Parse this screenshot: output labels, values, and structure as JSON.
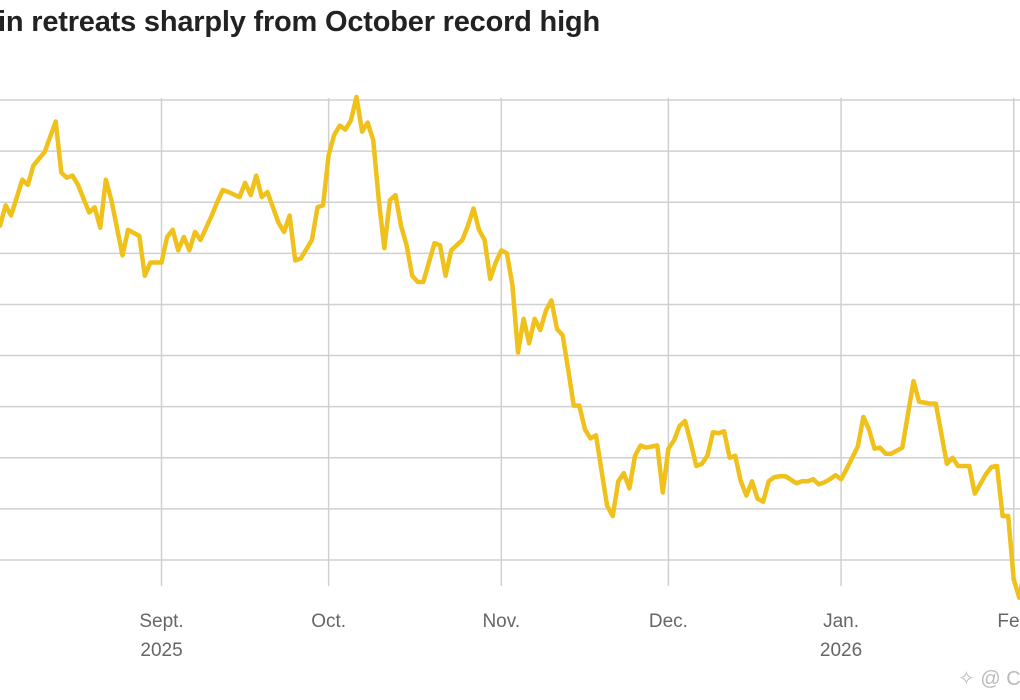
{
  "chart_data": {
    "type": "line",
    "title": "in retreats sharply from October record high",
    "xlabel": "",
    "ylabel": "",
    "line_color": "#efc11a",
    "grid": true,
    "grid_color": "#d0d0d0",
    "ylim": [
      80000,
      125000
    ],
    "y_grid_step": 5000,
    "xlim": [
      "2025-08-03",
      "2026-02-03"
    ],
    "x_ticks": [
      {
        "date": "2025-09-01",
        "label": "Sept.",
        "sublabel": "2025"
      },
      {
        "date": "2025-10-01",
        "label": "Oct.",
        "sublabel": ""
      },
      {
        "date": "2025-11-01",
        "label": "Nov.",
        "sublabel": ""
      },
      {
        "date": "2025-12-01",
        "label": "Dec.",
        "sublabel": ""
      },
      {
        "date": "2026-01-01",
        "label": "Jan.",
        "sublabel": "2026"
      },
      {
        "date": "2026-02-01",
        "label": "Feb",
        "sublabel": ""
      }
    ],
    "points": [
      [
        "2025-08-03",
        112700
      ],
      [
        "2025-08-04",
        114700
      ],
      [
        "2025-08-05",
        113700
      ],
      [
        "2025-08-07",
        117200
      ],
      [
        "2025-08-08",
        116700
      ],
      [
        "2025-08-09",
        118600
      ],
      [
        "2025-08-11",
        119900
      ],
      [
        "2025-08-13",
        122900
      ],
      [
        "2025-08-14",
        117900
      ],
      [
        "2025-08-15",
        117400
      ],
      [
        "2025-08-16",
        117600
      ],
      [
        "2025-08-17",
        116700
      ],
      [
        "2025-08-19",
        114000
      ],
      [
        "2025-08-20",
        114500
      ],
      [
        "2025-08-21",
        112500
      ],
      [
        "2025-08-22",
        117200
      ],
      [
        "2025-08-23",
        115200
      ],
      [
        "2025-08-25",
        109800
      ],
      [
        "2025-08-26",
        112300
      ],
      [
        "2025-08-28",
        111700
      ],
      [
        "2025-08-29",
        107800
      ],
      [
        "2025-08-30",
        109100
      ],
      [
        "2025-09-01",
        109100
      ],
      [
        "2025-09-02",
        111600
      ],
      [
        "2025-09-03",
        112300
      ],
      [
        "2025-09-04",
        110300
      ],
      [
        "2025-09-05",
        111600
      ],
      [
        "2025-09-06",
        110300
      ],
      [
        "2025-09-07",
        112100
      ],
      [
        "2025-09-08",
        111300
      ],
      [
        "2025-09-10",
        113700
      ],
      [
        "2025-09-11",
        115000
      ],
      [
        "2025-09-12",
        116200
      ],
      [
        "2025-09-13",
        116000
      ],
      [
        "2025-09-15",
        115500
      ],
      [
        "2025-09-16",
        116900
      ],
      [
        "2025-09-17",
        115700
      ],
      [
        "2025-09-18",
        117600
      ],
      [
        "2025-09-19",
        115500
      ],
      [
        "2025-09-20",
        116000
      ],
      [
        "2025-09-22",
        113000
      ],
      [
        "2025-09-23",
        112100
      ],
      [
        "2025-09-24",
        113700
      ],
      [
        "2025-09-25",
        109300
      ],
      [
        "2025-09-26",
        109500
      ],
      [
        "2025-09-28",
        111300
      ],
      [
        "2025-09-29",
        114500
      ],
      [
        "2025-09-30",
        114700
      ],
      [
        "2025-10-01",
        119600
      ],
      [
        "2025-10-02",
        121600
      ],
      [
        "2025-10-03",
        122500
      ],
      [
        "2025-10-04",
        122100
      ],
      [
        "2025-10-05",
        123000
      ],
      [
        "2025-10-06",
        125300
      ],
      [
        "2025-10-07",
        121900
      ],
      [
        "2025-10-08",
        122800
      ],
      [
        "2025-10-09",
        121100
      ],
      [
        "2025-10-10",
        115200
      ],
      [
        "2025-10-11",
        110500
      ],
      [
        "2025-10-12",
        115200
      ],
      [
        "2025-10-13",
        115700
      ],
      [
        "2025-10-14",
        112700
      ],
      [
        "2025-10-15",
        110800
      ],
      [
        "2025-10-16",
        107800
      ],
      [
        "2025-10-17",
        107200
      ],
      [
        "2025-10-18",
        107200
      ],
      [
        "2025-10-19",
        109100
      ],
      [
        "2025-10-20",
        111000
      ],
      [
        "2025-10-21",
        110800
      ],
      [
        "2025-10-22",
        107800
      ],
      [
        "2025-10-23",
        110300
      ],
      [
        "2025-10-25",
        111300
      ],
      [
        "2025-10-26",
        112700
      ],
      [
        "2025-10-27",
        114400
      ],
      [
        "2025-10-28",
        112300
      ],
      [
        "2025-10-29",
        111300
      ],
      [
        "2025-10-30",
        107500
      ],
      [
        "2025-10-31",
        109100
      ],
      [
        "2025-11-01",
        110300
      ],
      [
        "2025-11-02",
        110000
      ],
      [
        "2025-11-03",
        106900
      ],
      [
        "2025-11-04",
        100300
      ],
      [
        "2025-11-05",
        103600
      ],
      [
        "2025-11-06",
        101200
      ],
      [
        "2025-11-07",
        103600
      ],
      [
        "2025-11-08",
        102500
      ],
      [
        "2025-11-09",
        104400
      ],
      [
        "2025-11-10",
        105400
      ],
      [
        "2025-11-11",
        102600
      ],
      [
        "2025-11-12",
        102000
      ],
      [
        "2025-11-13",
        98700
      ],
      [
        "2025-11-14",
        95100
      ],
      [
        "2025-11-15",
        95100
      ],
      [
        "2025-11-16",
        92800
      ],
      [
        "2025-11-17",
        91900
      ],
      [
        "2025-11-18",
        92200
      ],
      [
        "2025-11-19",
        88700
      ],
      [
        "2025-11-20",
        85300
      ],
      [
        "2025-11-21",
        84300
      ],
      [
        "2025-11-22",
        87700
      ],
      [
        "2025-11-23",
        88500
      ],
      [
        "2025-11-24",
        87000
      ],
      [
        "2025-11-25",
        90200
      ],
      [
        "2025-11-26",
        91200
      ],
      [
        "2025-11-27",
        91000
      ],
      [
        "2025-11-28",
        91100
      ],
      [
        "2025-11-29",
        91200
      ],
      [
        "2025-11-30",
        86600
      ],
      [
        "2025-12-01",
        90900
      ],
      [
        "2025-12-02",
        91700
      ],
      [
        "2025-12-03",
        93100
      ],
      [
        "2025-12-04",
        93600
      ],
      [
        "2025-12-05",
        91500
      ],
      [
        "2025-12-06",
        89200
      ],
      [
        "2025-12-07",
        89400
      ],
      [
        "2025-12-08",
        90200
      ],
      [
        "2025-12-09",
        92500
      ],
      [
        "2025-12-10",
        92400
      ],
      [
        "2025-12-11",
        92600
      ],
      [
        "2025-12-12",
        90000
      ],
      [
        "2025-12-13",
        90200
      ],
      [
        "2025-12-14",
        87700
      ],
      [
        "2025-12-15",
        86300
      ],
      [
        "2025-12-16",
        87700
      ],
      [
        "2025-12-17",
        86000
      ],
      [
        "2025-12-18",
        85700
      ],
      [
        "2025-12-19",
        87700
      ],
      [
        "2025-12-20",
        88100
      ],
      [
        "2025-12-21",
        88200
      ],
      [
        "2025-12-22",
        88200
      ],
      [
        "2025-12-24",
        87500
      ],
      [
        "2025-12-25",
        87700
      ],
      [
        "2025-12-26",
        87700
      ],
      [
        "2025-12-27",
        87900
      ],
      [
        "2025-12-28",
        87400
      ],
      [
        "2025-12-29",
        87600
      ],
      [
        "2025-12-30",
        87900
      ],
      [
        "2025-12-31",
        88300
      ],
      [
        "2026-01-01",
        87900
      ],
      [
        "2026-01-02",
        88900
      ],
      [
        "2026-01-03",
        90000
      ],
      [
        "2026-01-04",
        91100
      ],
      [
        "2026-01-05",
        94000
      ],
      [
        "2026-01-06",
        92800
      ],
      [
        "2026-01-07",
        90900
      ],
      [
        "2026-01-08",
        91000
      ],
      [
        "2026-01-09",
        90400
      ],
      [
        "2026-01-10",
        90400
      ],
      [
        "2026-01-11",
        90700
      ],
      [
        "2026-01-12",
        91000
      ],
      [
        "2026-01-14",
        97500
      ],
      [
        "2026-01-15",
        95500
      ],
      [
        "2026-01-17",
        95300
      ],
      [
        "2026-01-18",
        95300
      ],
      [
        "2026-01-20",
        89400
      ],
      [
        "2026-01-21",
        90000
      ],
      [
        "2026-01-22",
        89200
      ],
      [
        "2026-01-23",
        89200
      ],
      [
        "2026-01-24",
        89200
      ],
      [
        "2026-01-25",
        86500
      ],
      [
        "2026-01-27",
        88400
      ],
      [
        "2026-01-28",
        89100
      ],
      [
        "2026-01-29",
        89200
      ],
      [
        "2026-01-30",
        84300
      ],
      [
        "2026-01-31",
        84300
      ],
      [
        "2026-02-01",
        78100
      ],
      [
        "2026-02-02",
        76300
      ],
      [
        "2026-02-03",
        79100
      ]
    ]
  },
  "watermark": {
    "icon": "diamond-logo-icon",
    "text": "@ C"
  }
}
